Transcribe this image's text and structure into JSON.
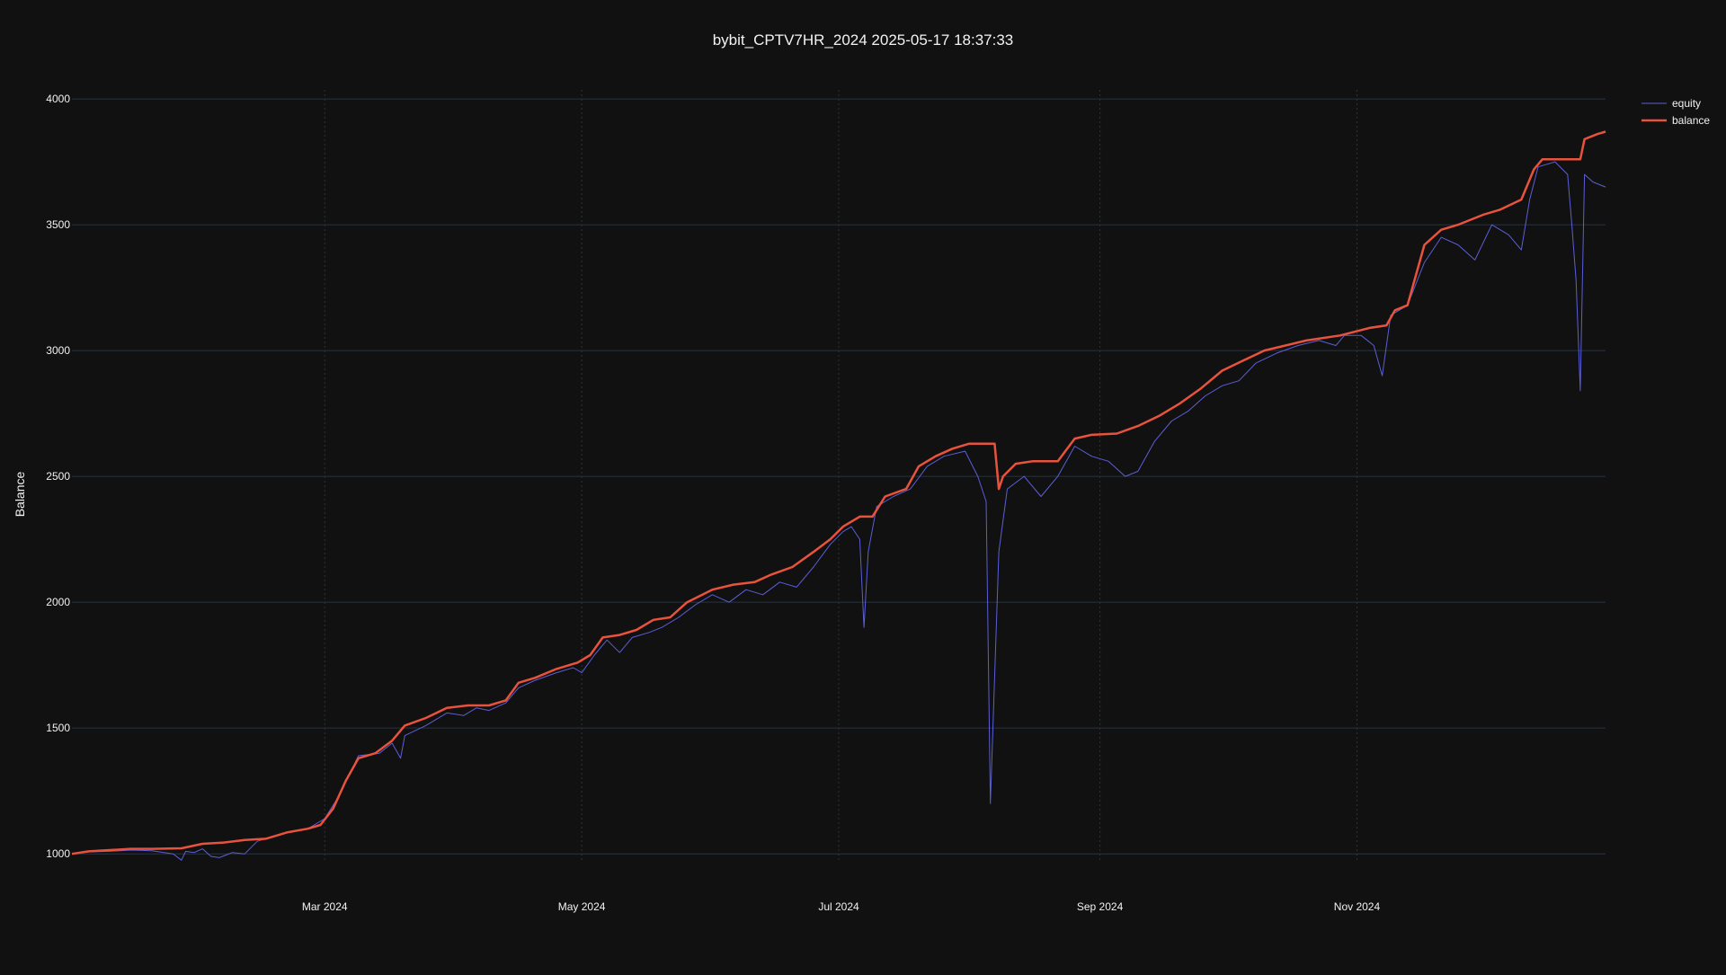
{
  "chart_data": {
    "type": "line",
    "title": "bybit_CPTV7HR_2024 2025-05-17 18:37:33",
    "xlabel": "",
    "ylabel": "Balance",
    "x_range": [
      "2024-01-01",
      "2024-12-30"
    ],
    "y_range": [
      965,
      4036
    ],
    "x_ticks": [
      {
        "date": "2024-03-01",
        "label": "Mar 2024"
      },
      {
        "date": "2024-05-01",
        "label": "May 2024"
      },
      {
        "date": "2024-07-01",
        "label": "Jul 2024"
      },
      {
        "date": "2024-09-01",
        "label": "Sep 2024"
      },
      {
        "date": "2024-11-01",
        "label": "Nov 2024"
      }
    ],
    "y_ticks": [
      1000,
      1500,
      2000,
      2500,
      3000,
      3500,
      4000
    ],
    "y_tick_labels": [
      "1000",
      "1500",
      "2000",
      "2500",
      "3000",
      "3500",
      "4000"
    ],
    "grid": {
      "horizontal": true,
      "vertical": true,
      "vertical_style": "dotted"
    },
    "legend": {
      "placement": "top-right outside plot",
      "entries": [
        "equity",
        "balance"
      ]
    },
    "background_color": "#111111",
    "series": [
      {
        "name": "equity",
        "color": "#5b5fd6",
        "line_width": 1,
        "points": [
          [
            "2024-01-01",
            1000
          ],
          [
            "2024-01-05",
            1008
          ],
          [
            "2024-01-10",
            1010
          ],
          [
            "2024-01-15",
            1015
          ],
          [
            "2024-01-20",
            1012
          ],
          [
            "2024-01-25",
            1000
          ],
          [
            "2024-01-27",
            975
          ],
          [
            "2024-01-28",
            1010
          ],
          [
            "2024-01-30",
            1005
          ],
          [
            "2024-02-01",
            1020
          ],
          [
            "2024-02-03",
            990
          ],
          [
            "2024-02-05",
            985
          ],
          [
            "2024-02-08",
            1005
          ],
          [
            "2024-02-11",
            1000
          ],
          [
            "2024-02-14",
            1050
          ],
          [
            "2024-02-18",
            1070
          ],
          [
            "2024-02-22",
            1090
          ],
          [
            "2024-02-26",
            1100
          ],
          [
            "2024-03-01",
            1140
          ],
          [
            "2024-03-04",
            1220
          ],
          [
            "2024-03-07",
            1320
          ],
          [
            "2024-03-09",
            1390
          ],
          [
            "2024-03-14",
            1400
          ],
          [
            "2024-03-17",
            1440
          ],
          [
            "2024-03-19",
            1380
          ],
          [
            "2024-03-20",
            1470
          ],
          [
            "2024-03-25",
            1510
          ],
          [
            "2024-03-30",
            1560
          ],
          [
            "2024-04-03",
            1550
          ],
          [
            "2024-04-06",
            1580
          ],
          [
            "2024-04-09",
            1570
          ],
          [
            "2024-04-13",
            1600
          ],
          [
            "2024-04-16",
            1660
          ],
          [
            "2024-04-20",
            1690
          ],
          [
            "2024-04-25",
            1720
          ],
          [
            "2024-04-29",
            1740
          ],
          [
            "2024-05-01",
            1720
          ],
          [
            "2024-05-04",
            1790
          ],
          [
            "2024-05-07",
            1850
          ],
          [
            "2024-05-10",
            1800
          ],
          [
            "2024-05-13",
            1860
          ],
          [
            "2024-05-17",
            1880
          ],
          [
            "2024-05-20",
            1900
          ],
          [
            "2024-05-24",
            1940
          ],
          [
            "2024-05-28",
            1990
          ],
          [
            "2024-06-01",
            2030
          ],
          [
            "2024-06-05",
            2000
          ],
          [
            "2024-06-09",
            2050
          ],
          [
            "2024-06-13",
            2030
          ],
          [
            "2024-06-17",
            2080
          ],
          [
            "2024-06-21",
            2060
          ],
          [
            "2024-06-25",
            2140
          ],
          [
            "2024-06-29",
            2230
          ],
          [
            "2024-07-02",
            2280
          ],
          [
            "2024-07-04",
            2300
          ],
          [
            "2024-07-06",
            2250
          ],
          [
            "2024-07-07",
            1900
          ],
          [
            "2024-07-08",
            2200
          ],
          [
            "2024-07-10",
            2380
          ],
          [
            "2024-07-14",
            2420
          ],
          [
            "2024-07-18",
            2450
          ],
          [
            "2024-07-22",
            2540
          ],
          [
            "2024-07-26",
            2580
          ],
          [
            "2024-07-31",
            2600
          ],
          [
            "2024-08-03",
            2500
          ],
          [
            "2024-08-05",
            2400
          ],
          [
            "2024-08-06",
            1200
          ],
          [
            "2024-08-07",
            1700
          ],
          [
            "2024-08-08",
            2200
          ],
          [
            "2024-08-10",
            2450
          ],
          [
            "2024-08-14",
            2500
          ],
          [
            "2024-08-18",
            2420
          ],
          [
            "2024-08-22",
            2500
          ],
          [
            "2024-08-26",
            2620
          ],
          [
            "2024-08-30",
            2580
          ],
          [
            "2024-09-03",
            2560
          ],
          [
            "2024-09-07",
            2500
          ],
          [
            "2024-09-10",
            2520
          ],
          [
            "2024-09-14",
            2640
          ],
          [
            "2024-09-18",
            2720
          ],
          [
            "2024-09-22",
            2760
          ],
          [
            "2024-09-26",
            2820
          ],
          [
            "2024-09-30",
            2860
          ],
          [
            "2024-10-04",
            2880
          ],
          [
            "2024-10-08",
            2950
          ],
          [
            "2024-10-13",
            2990
          ],
          [
            "2024-10-18",
            3020
          ],
          [
            "2024-10-23",
            3040
          ],
          [
            "2024-10-27",
            3020
          ],
          [
            "2024-10-29",
            3060
          ],
          [
            "2024-11-02",
            3060
          ],
          [
            "2024-11-05",
            3020
          ],
          [
            "2024-11-07",
            2900
          ],
          [
            "2024-11-09",
            3140
          ],
          [
            "2024-11-13",
            3180
          ],
          [
            "2024-11-17",
            3350
          ],
          [
            "2024-11-21",
            3450
          ],
          [
            "2024-11-25",
            3420
          ],
          [
            "2024-11-29",
            3360
          ],
          [
            "2024-12-03",
            3500
          ],
          [
            "2024-12-07",
            3460
          ],
          [
            "2024-12-10",
            3400
          ],
          [
            "2024-12-12",
            3600
          ],
          [
            "2024-12-14",
            3730
          ],
          [
            "2024-12-18",
            3750
          ],
          [
            "2024-12-21",
            3700
          ],
          [
            "2024-12-22",
            3500
          ],
          [
            "2024-12-23",
            3280
          ],
          [
            "2024-12-24",
            2840
          ],
          [
            "2024-12-25",
            3700
          ],
          [
            "2024-12-27",
            3670
          ],
          [
            "2024-12-30",
            3650
          ]
        ]
      },
      {
        "name": "balance",
        "color": "#e8533d",
        "line_width": 2.5,
        "points": [
          [
            "2024-01-01",
            1000
          ],
          [
            "2024-01-05",
            1010
          ],
          [
            "2024-01-10",
            1015
          ],
          [
            "2024-01-15",
            1020
          ],
          [
            "2024-01-20",
            1020
          ],
          [
            "2024-01-27",
            1022
          ],
          [
            "2024-02-01",
            1040
          ],
          [
            "2024-02-06",
            1045
          ],
          [
            "2024-02-11",
            1055
          ],
          [
            "2024-02-16",
            1060
          ],
          [
            "2024-02-21",
            1085
          ],
          [
            "2024-02-26",
            1100
          ],
          [
            "2024-02-29",
            1115
          ],
          [
            "2024-03-03",
            1180
          ],
          [
            "2024-03-06",
            1290
          ],
          [
            "2024-03-09",
            1380
          ],
          [
            "2024-03-13",
            1400
          ],
          [
            "2024-03-17",
            1450
          ],
          [
            "2024-03-20",
            1510
          ],
          [
            "2024-03-25",
            1540
          ],
          [
            "2024-03-30",
            1580
          ],
          [
            "2024-04-04",
            1590
          ],
          [
            "2024-04-09",
            1590
          ],
          [
            "2024-04-13",
            1610
          ],
          [
            "2024-04-16",
            1680
          ],
          [
            "2024-04-20",
            1700
          ],
          [
            "2024-04-25",
            1735
          ],
          [
            "2024-04-30",
            1760
          ],
          [
            "2024-05-03",
            1790
          ],
          [
            "2024-05-06",
            1860
          ],
          [
            "2024-05-10",
            1870
          ],
          [
            "2024-05-14",
            1890
          ],
          [
            "2024-05-18",
            1930
          ],
          [
            "2024-05-22",
            1940
          ],
          [
            "2024-05-26",
            2000
          ],
          [
            "2024-06-01",
            2050
          ],
          [
            "2024-06-06",
            2070
          ],
          [
            "2024-06-11",
            2080
          ],
          [
            "2024-06-15",
            2110
          ],
          [
            "2024-06-20",
            2140
          ],
          [
            "2024-06-25",
            2200
          ],
          [
            "2024-06-29",
            2250
          ],
          [
            "2024-07-02",
            2300
          ],
          [
            "2024-07-06",
            2340
          ],
          [
            "2024-07-09",
            2340
          ],
          [
            "2024-07-12",
            2420
          ],
          [
            "2024-07-17",
            2450
          ],
          [
            "2024-07-20",
            2540
          ],
          [
            "2024-07-24",
            2580
          ],
          [
            "2024-07-28",
            2610
          ],
          [
            "2024-08-01",
            2630
          ],
          [
            "2024-08-05",
            2630
          ],
          [
            "2024-08-07",
            2630
          ],
          [
            "2024-08-08",
            2450
          ],
          [
            "2024-08-09",
            2500
          ],
          [
            "2024-08-12",
            2550
          ],
          [
            "2024-08-16",
            2560
          ],
          [
            "2024-08-22",
            2560
          ],
          [
            "2024-08-26",
            2650
          ],
          [
            "2024-08-30",
            2665
          ],
          [
            "2024-09-05",
            2670
          ],
          [
            "2024-09-10",
            2700
          ],
          [
            "2024-09-15",
            2740
          ],
          [
            "2024-09-20",
            2790
          ],
          [
            "2024-09-25",
            2850
          ],
          [
            "2024-09-30",
            2920
          ],
          [
            "2024-10-05",
            2960
          ],
          [
            "2024-10-10",
            3000
          ],
          [
            "2024-10-20",
            3040
          ],
          [
            "2024-10-28",
            3060
          ],
          [
            "2024-11-04",
            3090
          ],
          [
            "2024-11-08",
            3100
          ],
          [
            "2024-11-10",
            3160
          ],
          [
            "2024-11-13",
            3180
          ],
          [
            "2024-11-17",
            3420
          ],
          [
            "2024-11-21",
            3480
          ],
          [
            "2024-11-25",
            3500
          ],
          [
            "2024-12-01",
            3540
          ],
          [
            "2024-12-05",
            3560
          ],
          [
            "2024-12-10",
            3600
          ],
          [
            "2024-12-13",
            3720
          ],
          [
            "2024-12-15",
            3760
          ],
          [
            "2024-12-24",
            3760
          ],
          [
            "2024-12-25",
            3840
          ],
          [
            "2024-12-28",
            3860
          ],
          [
            "2024-12-30",
            3870
          ]
        ]
      }
    ]
  }
}
